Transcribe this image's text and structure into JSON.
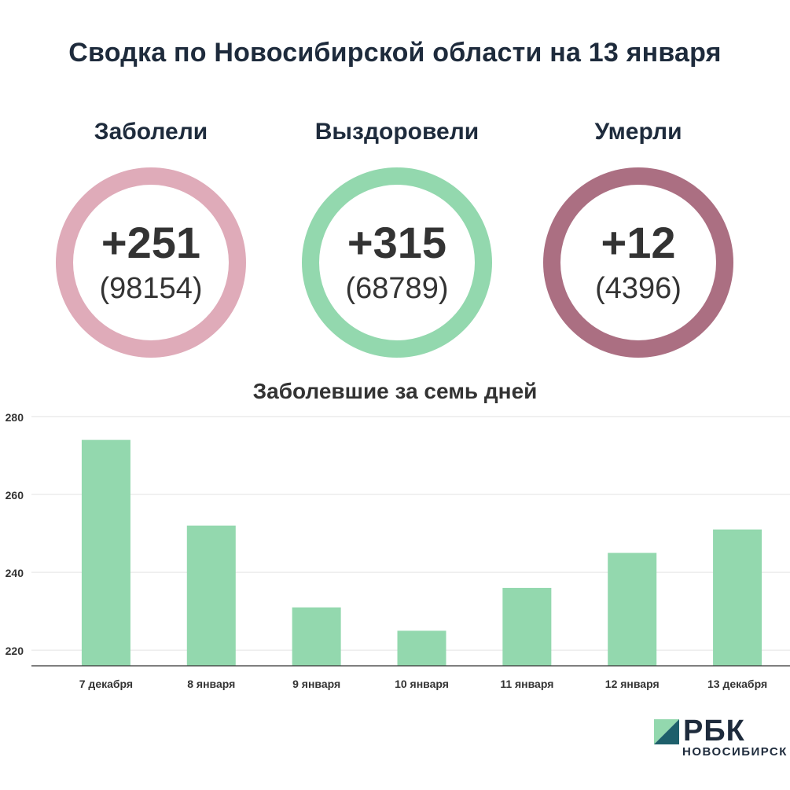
{
  "title": "Сводка по Новосибирской области на 13 января",
  "stats": [
    {
      "label": "Заболели",
      "delta": "+251",
      "total": "(98154)",
      "color": "#dfabb9"
    },
    {
      "label": "Выздоровели",
      "delta": "+315",
      "total": "(68789)",
      "color": "#93d8ae"
    },
    {
      "label": "Умерли",
      "delta": "+12",
      "total": "(4396)",
      "color": "#ab6f82"
    }
  ],
  "chart_title": "Заболевшие за семь дней",
  "chart_data": {
    "type": "bar",
    "title": "Заболевшие за семь дней",
    "categories": [
      "7 декабря",
      "8 января",
      "9 января",
      "10 января",
      "11 января",
      "12 января",
      "13 декабря"
    ],
    "values": [
      274,
      252,
      231,
      225,
      236,
      245,
      251
    ],
    "ylim": [
      216,
      282
    ],
    "yticks": [
      220,
      240,
      260,
      280
    ],
    "bar_color": "#93d8ae",
    "grid": true,
    "xlabel": "",
    "ylabel": ""
  },
  "logo": {
    "name": "РБК",
    "subtitle": "НОВОСИБИРСК",
    "colors": [
      "#93d8ae",
      "#1e5f6b"
    ]
  }
}
